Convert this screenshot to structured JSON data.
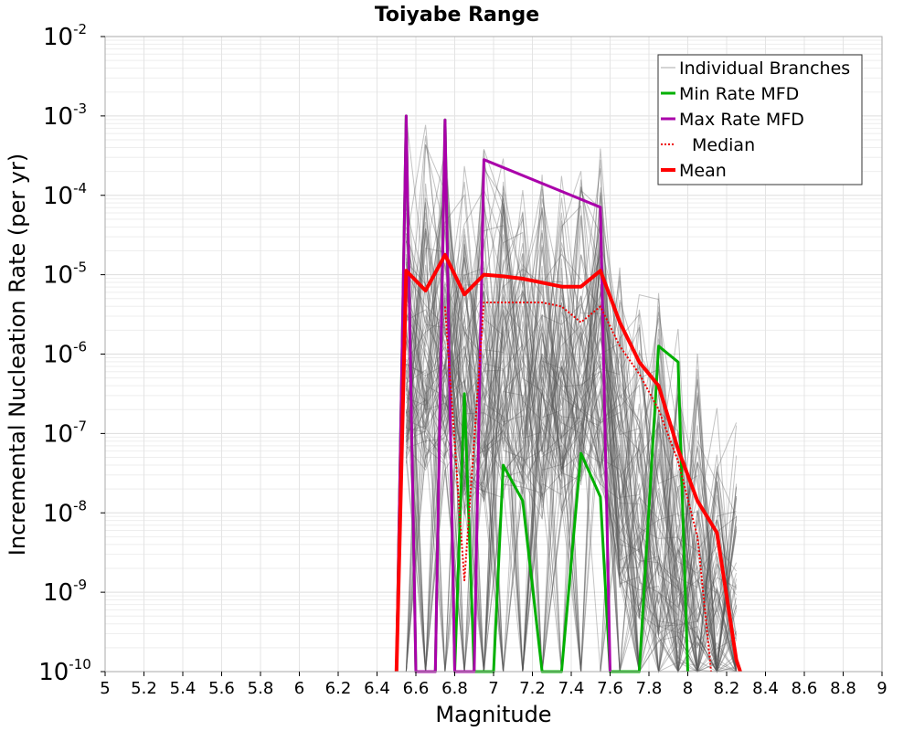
{
  "chart_data": {
    "type": "line",
    "title": "Toiyabe Range",
    "xlabel": "Magnitude",
    "ylabel": "Incremental Nucleation Rate (per yr)",
    "xlim": [
      5,
      9
    ],
    "ylim_log10": [
      -10,
      -2
    ],
    "x_ticks": [
      5,
      5.2,
      5.4,
      5.6,
      5.8,
      6,
      6.2,
      6.4,
      6.6,
      6.8,
      7,
      7.2,
      7.4,
      7.6,
      7.8,
      8,
      8.2,
      8.4,
      8.6,
      8.8,
      9
    ],
    "x_tick_labels": [
      "5",
      "5.2",
      "5.4",
      "5.6",
      "5.8",
      "6",
      "6.2",
      "6.4",
      "6.6",
      "6.8",
      "7",
      "7.2",
      "7.4",
      "7.6",
      "7.8",
      "8",
      "8.2",
      "8.4",
      "8.6",
      "8.8",
      "9"
    ],
    "y_tick_exponents": [
      "-2",
      "-3",
      "-4",
      "-5",
      "-6",
      "-7",
      "-8",
      "-9",
      "-10"
    ],
    "y_tick_base": "10",
    "legend_position": "top-right",
    "series": [
      {
        "name": "Individual Branches",
        "color": "#555555",
        "style": "thin",
        "envelope": {
          "x": [
            6.55,
            6.65,
            6.75,
            6.85,
            6.95,
            7.05,
            7.15,
            7.25,
            7.35,
            7.45,
            7.55,
            7.65,
            7.75,
            7.85,
            7.95,
            8.05,
            8.15,
            8.25
          ],
          "upper_log10": [
            -3.0,
            -3.0,
            -3.0,
            -3.6,
            -3.4,
            -3.4,
            -3.5,
            -3.6,
            -3.6,
            -3.3,
            -3.2,
            -4.5,
            -4.9,
            -5.2,
            -5.6,
            -5.9,
            -6.3,
            -6.6
          ],
          "lower_log10": [
            -10,
            -10,
            -10,
            -10,
            -10,
            -10,
            -10,
            -10,
            -10,
            -10,
            -10,
            -10,
            -10,
            -10,
            -10,
            -10,
            -10,
            -10
          ]
        }
      },
      {
        "name": "Min Rate MFD",
        "color": "#00b000",
        "style": "solid",
        "x": [
          6.5,
          6.55,
          6.6,
          6.65,
          6.7,
          6.75,
          6.8,
          6.85,
          6.9,
          6.95,
          7.0,
          7.05,
          7.15,
          7.25,
          7.35,
          7.45,
          7.55,
          7.6,
          7.75,
          7.85,
          7.95,
          8.0
        ],
        "log10_rate": [
          -10,
          -3.0,
          -10,
          -10,
          -10,
          -3.05,
          -10,
          -6.5,
          -10,
          -10,
          -10,
          -7.4,
          -7.85,
          -10,
          -10,
          -7.25,
          -7.8,
          -10,
          -10,
          -5.9,
          -6.1,
          -10
        ]
      },
      {
        "name": "Max Rate MFD",
        "color": "#aa00aa",
        "style": "solid",
        "x": [
          6.5,
          6.55,
          6.6,
          6.65,
          6.7,
          6.75,
          6.8,
          6.85,
          6.9,
          6.95,
          7.55,
          7.6
        ],
        "log10_rate": [
          -10,
          -3.0,
          -10,
          -10,
          -10,
          -3.05,
          -10,
          -10,
          -10,
          -3.55,
          -4.15,
          -10
        ]
      },
      {
        "name": "Median",
        "color": "#ee0000",
        "style": "dotted",
        "x": [
          6.75,
          6.85,
          6.95,
          7.05,
          7.15,
          7.25,
          7.35,
          7.45,
          7.55,
          7.65,
          7.75,
          7.85,
          7.95,
          8.05,
          8.1,
          8.12
        ],
        "log10_rate": [
          -5.4,
          -8.85,
          -5.35,
          -5.35,
          -5.35,
          -5.35,
          -5.4,
          -5.6,
          -5.4,
          -5.9,
          -6.25,
          -6.7,
          -7.35,
          -8.3,
          -9.5,
          -10
        ]
      },
      {
        "name": "Mean",
        "color": "#ff0000",
        "style": "thick",
        "x": [
          6.5,
          6.55,
          6.65,
          6.75,
          6.85,
          6.95,
          7.05,
          7.15,
          7.25,
          7.35,
          7.45,
          7.55,
          7.65,
          7.75,
          7.85,
          7.95,
          8.05,
          8.15,
          8.25,
          8.27
        ],
        "log10_rate": [
          -10,
          -4.95,
          -5.2,
          -4.75,
          -5.25,
          -5.0,
          -5.02,
          -5.05,
          -5.1,
          -5.15,
          -5.15,
          -4.95,
          -5.6,
          -6.1,
          -6.4,
          -7.2,
          -7.85,
          -8.25,
          -9.85,
          -10
        ]
      }
    ]
  }
}
